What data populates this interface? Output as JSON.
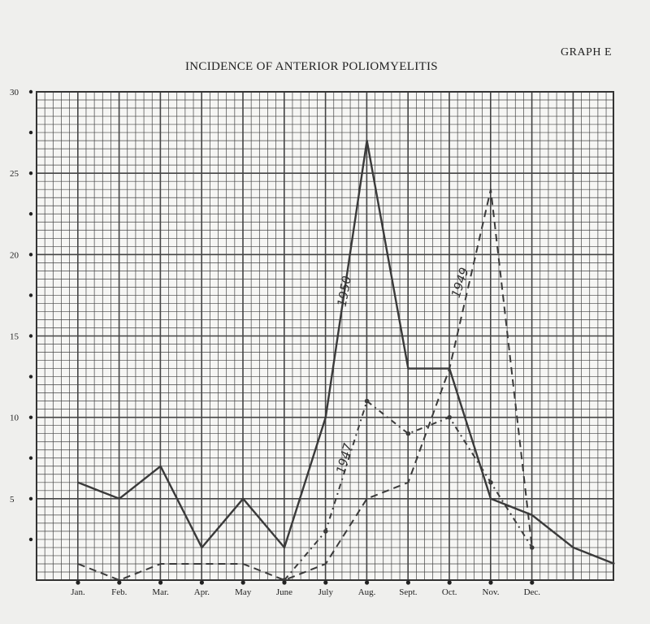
{
  "chart_data": {
    "type": "line",
    "title": "INCIDENCE OF ANTERIOR POLIOMYELITIS",
    "graph_label": "GRAPH E",
    "categories": [
      "Jan.",
      "Feb.",
      "Mar.",
      "Apr.",
      "May",
      "June",
      "July",
      "Aug.",
      "Sept.",
      "Oct.",
      "Nov.",
      "Dec."
    ],
    "ylim": [
      0,
      30
    ],
    "y_ticks": [
      "5",
      "10",
      "15",
      "20",
      "25",
      "30"
    ],
    "grid": true,
    "series": [
      {
        "name": "1950",
        "style": "solid",
        "color": "#3a3a3a",
        "x": [
          0,
          1,
          2,
          3,
          4,
          5,
          6,
          7,
          8,
          9,
          10,
          11,
          12,
          13
        ],
        "values": [
          6,
          5,
          7,
          2,
          5,
          2,
          10,
          27,
          13,
          13,
          5,
          4,
          2,
          1
        ]
      },
      {
        "name": "1949",
        "style": "dashed",
        "color": "#3a3a3a",
        "x": [
          0,
          1,
          2,
          3,
          4,
          5,
          6,
          7,
          8,
          9,
          10,
          11
        ],
        "values": [
          1,
          0,
          1,
          1,
          1,
          0,
          1,
          5,
          6,
          13,
          24,
          2
        ]
      },
      {
        "name": "1947",
        "style": "dash-dot",
        "color": "#3a3a3a",
        "x": [
          5,
          6,
          7,
          8,
          9,
          10,
          11
        ],
        "values": [
          0,
          3,
          11,
          9,
          10,
          6,
          2
        ]
      }
    ]
  }
}
